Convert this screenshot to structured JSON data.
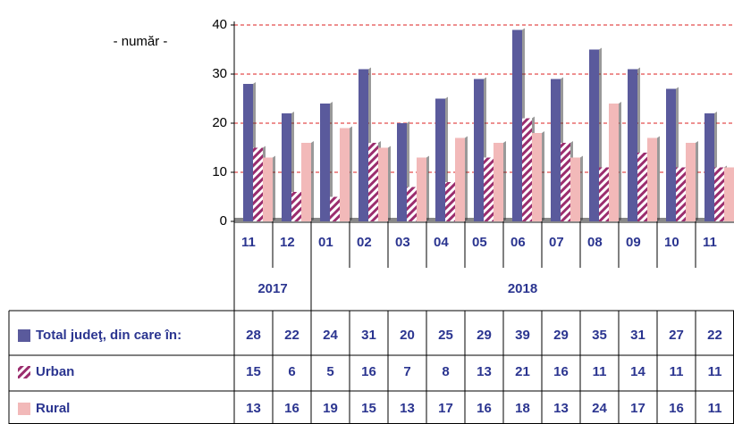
{
  "chart_data": {
    "type": "bar",
    "y_label": "- număr -",
    "categories": [
      "11",
      "12",
      "01",
      "02",
      "03",
      "04",
      "05",
      "06",
      "07",
      "08",
      "09",
      "10",
      "11"
    ],
    "years": [
      "2017",
      "2018"
    ],
    "series": [
      {
        "name": "Total judeţ, din care în:",
        "color": "#5a5a9c",
        "values": [
          28,
          22,
          24,
          31,
          20,
          25,
          29,
          39,
          29,
          35,
          31,
          27,
          22
        ]
      },
      {
        "name": "Urban",
        "color": "#9b2d6e",
        "pattern": "hatch",
        "values": [
          15,
          6,
          5,
          16,
          7,
          8,
          13,
          21,
          16,
          11,
          14,
          11,
          11
        ]
      },
      {
        "name": "Rural",
        "color": "#f2b9b9",
        "values": [
          13,
          16,
          19,
          15,
          13,
          17,
          16,
          18,
          13,
          24,
          17,
          16,
          11
        ]
      }
    ],
    "ylim": [
      0,
      40
    ],
    "yticks": [
      0,
      10,
      20,
      30,
      40
    ],
    "grid": true
  }
}
